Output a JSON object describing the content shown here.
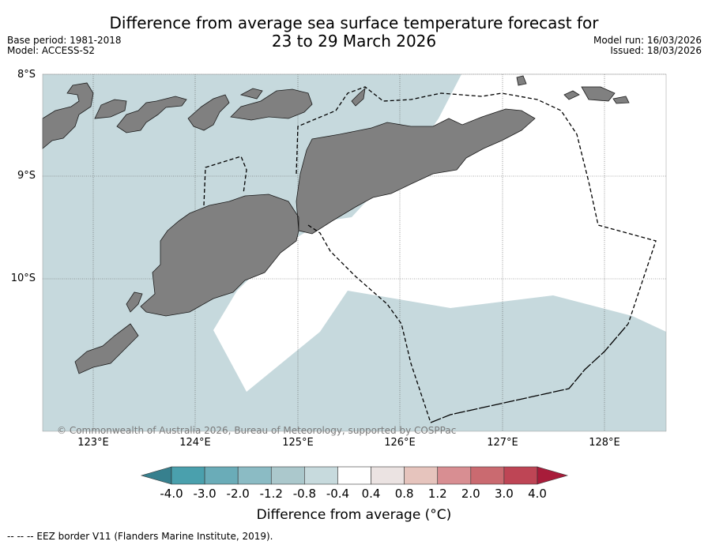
{
  "title": {
    "line1": "Difference from average sea surface temperature forecast for",
    "line2": "23 to 29 March 2026"
  },
  "meta": {
    "base_period": "Base period: 1981-2018",
    "model": "Model: ACCESS-S2",
    "model_run": "Model run: 16/03/2026",
    "issued": "Issued: 18/03/2026"
  },
  "axes": {
    "lat_labels": [
      "8°S",
      "9°S",
      "10°S"
    ],
    "lon_labels": [
      "123°E",
      "124°E",
      "125°E",
      "126°E",
      "127°E",
      "128°E"
    ]
  },
  "copyright": "© Commonwealth of Australia 2026, Bureau of Meteorology, supported by COSPPac",
  "colorbar": {
    "ticks": [
      "-4.0",
      "-3.0",
      "-2.0",
      "-1.2",
      "-0.8",
      "-0.4",
      "0.4",
      "0.8",
      "1.2",
      "2.0",
      "3.0",
      "4.0"
    ],
    "colors": [
      "#4aa0ad",
      "#6aacb8",
      "#8bbbc4",
      "#abc8cc",
      "#c7dadd",
      "#ffffff",
      "#ebe3e2",
      "#e6c4bd",
      "#d88e92",
      "#ca6a70",
      "#be4555"
    ],
    "under_color": "#37808e",
    "over_color": "#a81c3a",
    "label": "Difference from average (°C)"
  },
  "legend_note": "--  --  -- EEZ border V11 (Flanders Marine Institute, 2019).",
  "colors": {
    "sea_cool": "#c6d9dd",
    "land": "#808080"
  }
}
